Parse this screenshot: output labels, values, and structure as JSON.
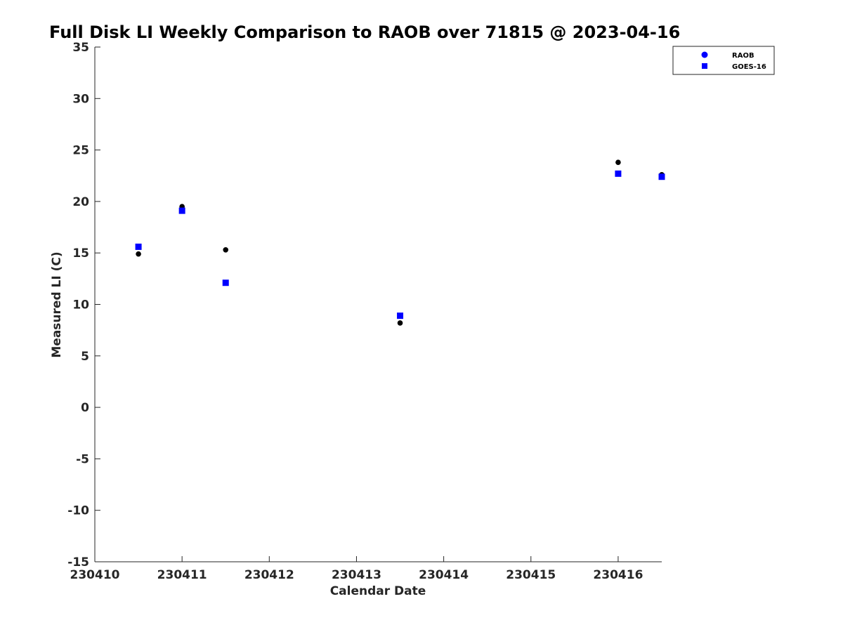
{
  "chart_data": {
    "type": "scatter",
    "title": "Full Disk LI Weekly Comparison to RAOB over 71815 @ 2023-04-16",
    "xlabel": "Calendar Date",
    "ylabel": "Measured LI (C)",
    "xlim": [
      230410,
      230416.5
    ],
    "ylim": [
      -15,
      35
    ],
    "x_ticks": [
      230410,
      230411,
      230412,
      230413,
      230414,
      230415,
      230416
    ],
    "x_tick_labels": [
      "230410",
      "230411",
      "230412",
      "230413",
      "230414",
      "230415",
      "230416"
    ],
    "y_ticks": [
      -15,
      -10,
      -5,
      0,
      5,
      10,
      15,
      20,
      25,
      30,
      35
    ],
    "y_tick_labels": [
      "-15",
      "-10",
      "-5",
      "0",
      "5",
      "10",
      "15",
      "20",
      "25",
      "30",
      "35"
    ],
    "grid": false,
    "legend_position": "top-right",
    "series": [
      {
        "name": "RAOB",
        "marker": "circle",
        "color": "#000000",
        "legend_color": "#0000ff",
        "points": [
          {
            "x": 230410.5,
            "y": 14.9
          },
          {
            "x": 230411.0,
            "y": 19.5
          },
          {
            "x": 230411.5,
            "y": 15.3
          },
          {
            "x": 230413.5,
            "y": 8.2
          },
          {
            "x": 230416.0,
            "y": 23.8
          },
          {
            "x": 230416.5,
            "y": 22.6
          }
        ]
      },
      {
        "name": "GOES-16",
        "marker": "square",
        "color": "#0000ff",
        "legend_color": "#0000ff",
        "points": [
          {
            "x": 230410.5,
            "y": 15.6
          },
          {
            "x": 230411.0,
            "y": 19.1
          },
          {
            "x": 230411.5,
            "y": 12.1
          },
          {
            "x": 230413.5,
            "y": 8.9
          },
          {
            "x": 230416.0,
            "y": 22.7
          },
          {
            "x": 230416.5,
            "y": 22.4
          }
        ]
      }
    ]
  }
}
